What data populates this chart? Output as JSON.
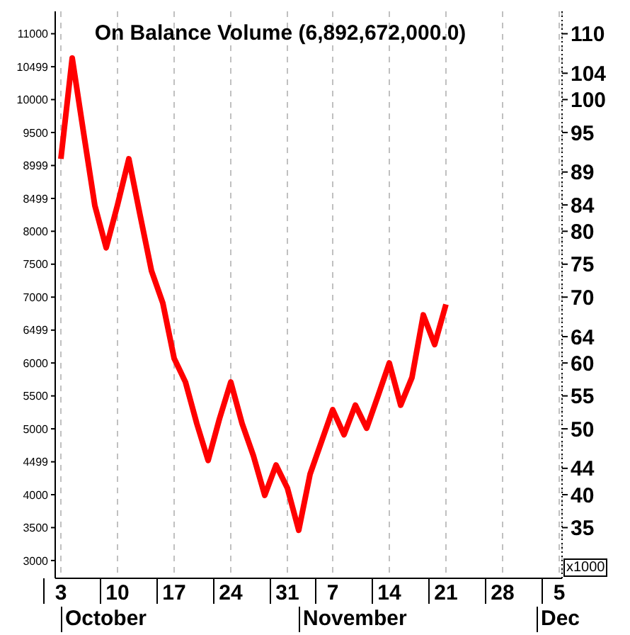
{
  "chart_data": {
    "type": "line",
    "title": "On Balance Volume (6,892,672,000.0)",
    "categories": [
      "3",
      null,
      null,
      null,
      null,
      "10",
      null,
      null,
      null,
      null,
      "17",
      null,
      null,
      null,
      null,
      "24",
      null,
      null,
      null,
      null,
      "31",
      null,
      null,
      null,
      "7",
      null,
      null,
      null,
      null,
      "14",
      null,
      null,
      null,
      null,
      "21",
      null,
      null,
      null,
      null,
      "28",
      null,
      null,
      null,
      null,
      "5"
    ],
    "series": [
      {
        "color": "#ff0000",
        "values": [
          9100,
          10630,
          9500,
          8390,
          7750,
          8400,
          9100,
          8240,
          7400,
          6910,
          6070,
          5710,
          5080,
          4520,
          5150,
          5710,
          5080,
          4590,
          3990,
          4450,
          4100,
          3460,
          4310,
          4800,
          5290,
          4910,
          5360,
          5010,
          5500,
          6000,
          5360,
          5780,
          6730,
          6280,
          6890,
          null,
          null,
          null,
          null,
          null,
          null,
          null,
          null,
          null,
          null
        ]
      }
    ],
    "ylim": [
      2730,
      11340
    ],
    "yticks": [
      3000,
      3500,
      4000,
      4499,
      5000,
      5500,
      6000,
      6499,
      7000,
      7500,
      8000,
      8499,
      8999,
      9500,
      10000,
      10499,
      11000
    ],
    "y2lim": [
      27.3,
      113.4
    ],
    "y2ticks": [
      35,
      40,
      44,
      50,
      55,
      60,
      64,
      70,
      75,
      80,
      84,
      89,
      95,
      100,
      104,
      110
    ],
    "annotations": [
      "October",
      "November",
      "Dec",
      "x1000"
    ],
    "grid": "x",
    "legend": false,
    "marker": "none",
    "line_style": "solid"
  }
}
